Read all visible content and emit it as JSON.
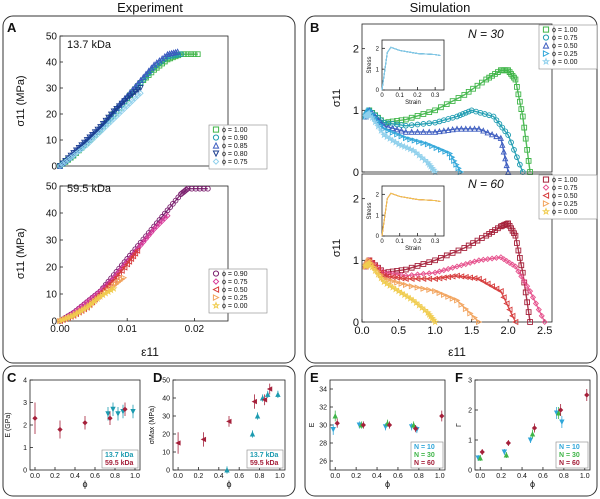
{
  "header": {
    "left": "Experiment",
    "right": "Simulation"
  },
  "panel_letters": {
    "A": "A",
    "B": "B",
    "C": "C",
    "D": "D",
    "E": "E",
    "F": "F"
  },
  "colors": {
    "green": "#3fb548",
    "teal": "#1c9bb0",
    "blue": "#3b5bbf",
    "navy": "#1b3d8f",
    "lightblue": "#8fd0ec",
    "purple": "#7a1f6e",
    "magenta": "#d83a9a",
    "red": "#d63a3a",
    "orange": "#f2a35c",
    "yellow": "#f0cc4f",
    "pink": "#e6508c",
    "cyan": "#2fa6d9",
    "darkred": "#a5203a",
    "frame": "#333333"
  },
  "chart_data": [
    {
      "id": "A_top",
      "type": "line",
      "annotation": "13.7 kDa",
      "ylabel": "σ11 (MPa)",
      "xlim": [
        0,
        0.025
      ],
      "ylim": [
        0,
        50
      ],
      "xticks": [],
      "yticks": [
        0,
        10,
        20,
        30,
        40,
        50
      ],
      "legend_position": "bottom-right",
      "series": [
        {
          "name": "ϕ = 1.00",
          "marker": "square",
          "color": "#3fb548",
          "x": [
            0,
            0.002,
            0.004,
            0.006,
            0.008,
            0.01,
            0.012,
            0.014,
            0.016,
            0.018,
            0.0205
          ],
          "y": [
            0,
            4,
            9,
            14,
            20,
            26,
            32,
            37,
            41,
            43,
            43
          ]
        },
        {
          "name": "ϕ = 0.90",
          "marker": "circle",
          "color": "#1c9bb0",
          "x": [
            0,
            0.002,
            0.004,
            0.006,
            0.008,
            0.01,
            0.012,
            0.014,
            0.016,
            0.018
          ],
          "y": [
            0,
            4,
            9,
            14,
            20,
            26,
            32,
            38,
            42,
            43
          ]
        },
        {
          "name": "ϕ = 0.85",
          "marker": "triangle-up",
          "color": "#3b5bbf",
          "x": [
            0,
            0.002,
            0.004,
            0.006,
            0.008,
            0.01,
            0.012,
            0.014,
            0.016,
            0.0175
          ],
          "y": [
            0,
            5,
            10,
            15,
            21,
            27,
            33,
            39,
            43,
            44
          ]
        },
        {
          "name": "ϕ = 0.80",
          "marker": "triangle-down",
          "color": "#1b3d8f",
          "x": [
            0,
            0.002,
            0.004,
            0.006,
            0.008,
            0.01,
            0.012
          ],
          "y": [
            0,
            5,
            10,
            15,
            21,
            26,
            30
          ]
        },
        {
          "name": "ϕ = 0.75",
          "marker": "diamond",
          "color": "#8fd0ec",
          "x": [
            0,
            0.002,
            0.004,
            0.006,
            0.008,
            0.01,
            0.012
          ],
          "y": [
            0,
            4,
            8,
            13,
            18,
            23,
            28
          ]
        }
      ]
    },
    {
      "id": "A_bottom",
      "type": "line",
      "annotation": "59.5 kDa",
      "xlabel": "ε11",
      "ylabel": "σ11 (MPa)",
      "xlim": [
        0,
        0.025
      ],
      "ylim": [
        0,
        50
      ],
      "xticks": [
        0.0,
        0.01,
        0.02
      ],
      "yticks": [
        0,
        10,
        20,
        30,
        40,
        50
      ],
      "legend_position": "bottom-right",
      "series": [
        {
          "name": "ϕ = 0.90",
          "marker": "circle",
          "color": "#7a1f6e",
          "x": [
            0,
            0.002,
            0.004,
            0.006,
            0.008,
            0.01,
            0.012,
            0.014,
            0.016,
            0.018,
            0.019,
            0.022
          ],
          "y": [
            0,
            3,
            7,
            11,
            17,
            23,
            29,
            35,
            41,
            47,
            49,
            49
          ]
        },
        {
          "name": "ϕ = 0.75",
          "marker": "diamond",
          "color": "#d83a9a",
          "x": [
            0,
            0.002,
            0.004,
            0.006,
            0.008,
            0.01,
            0.012,
            0.014,
            0.016
          ],
          "y": [
            0,
            3,
            7,
            11,
            16,
            22,
            28,
            34,
            39
          ]
        },
        {
          "name": "ϕ = 0.50",
          "marker": "triangle-left",
          "color": "#d63a3a",
          "x": [
            0,
            0.002,
            0.004,
            0.006,
            0.008,
            0.01,
            0.0115
          ],
          "y": [
            0,
            2,
            5,
            10,
            15,
            21,
            26
          ]
        },
        {
          "name": "ϕ = 0.25",
          "marker": "triangle-right",
          "color": "#f2a35c",
          "x": [
            0,
            0.002,
            0.004,
            0.006,
            0.008,
            0.0095
          ],
          "y": [
            0,
            2,
            5,
            9,
            13,
            16
          ]
        },
        {
          "name": "ϕ = 0.00",
          "marker": "star",
          "color": "#f0cc4f",
          "x": [
            0,
            0.002,
            0.004,
            0.006,
            0.008
          ],
          "y": [
            0,
            2,
            5,
            9,
            12
          ]
        }
      ]
    },
    {
      "id": "B_top",
      "type": "line",
      "annotation": "N = 30",
      "ylabel": "σ11",
      "xlim": [
        0,
        2.6
      ],
      "ylim": [
        0,
        2.4
      ],
      "yticks": [
        0,
        1,
        2
      ],
      "xticks": [],
      "legend_position": "top-right",
      "series": [
        {
          "name": "ϕ = 1.00",
          "marker": "square",
          "color": "#3fb548",
          "x": [
            0.05,
            0.1,
            0.3,
            0.6,
            1.0,
            1.4,
            1.7,
            1.9,
            2.0,
            2.1,
            2.2,
            2.3
          ],
          "y": [
            0.9,
            1.0,
            0.8,
            0.85,
            1.0,
            1.25,
            1.5,
            1.65,
            1.65,
            1.5,
            0.9,
            0.0
          ]
        },
        {
          "name": "ϕ = 0.75",
          "marker": "circle",
          "color": "#1c9bb0",
          "x": [
            0.05,
            0.1,
            0.3,
            0.6,
            1.0,
            1.3,
            1.5,
            1.8,
            2.0,
            2.2
          ],
          "y": [
            0.9,
            1.0,
            0.8,
            0.75,
            0.8,
            0.9,
            1.0,
            0.9,
            0.6,
            0.0
          ]
        },
        {
          "name": "ϕ = 0.50",
          "marker": "triangle-up",
          "color": "#3b5bbf",
          "x": [
            0.05,
            0.1,
            0.3,
            0.6,
            1.0,
            1.3,
            1.6,
            1.9,
            2.0
          ],
          "y": [
            0.9,
            1.0,
            0.75,
            0.65,
            0.65,
            0.7,
            0.7,
            0.55,
            0.0
          ]
        },
        {
          "name": "ϕ = 0.25",
          "marker": "triangle-right",
          "color": "#2fa6d9",
          "x": [
            0.05,
            0.1,
            0.3,
            0.6,
            0.9,
            1.2,
            1.35
          ],
          "y": [
            0.9,
            1.0,
            0.7,
            0.55,
            0.45,
            0.3,
            0.0
          ]
        },
        {
          "name": "ϕ = 0.00",
          "marker": "star",
          "color": "#8fd0ec",
          "x": [
            0.05,
            0.1,
            0.3,
            0.5,
            0.7,
            0.9,
            1.0
          ],
          "y": [
            0.9,
            0.95,
            0.6,
            0.45,
            0.35,
            0.15,
            0.0
          ]
        }
      ],
      "inset": {
        "xlabel": "Strain",
        "ylabel": "Stress",
        "xlim": [
          0,
          0.35
        ],
        "ylim": [
          0,
          2.4
        ],
        "xticks": [
          0,
          0.1,
          0.2,
          0.3
        ],
        "yticks": [
          0,
          1,
          2
        ]
      }
    },
    {
      "id": "B_bottom",
      "type": "line",
      "annotation": "N = 60",
      "xlabel": "ε11",
      "ylabel": "σ11",
      "xlim": [
        0,
        2.6
      ],
      "ylim": [
        0,
        2.4
      ],
      "xticks": [
        0.0,
        0.5,
        1.0,
        1.5,
        2.0,
        2.5
      ],
      "yticks": [
        0,
        1,
        2
      ],
      "legend_position": "top-right",
      "series": [
        {
          "name": "ϕ = 1.00",
          "marker": "square",
          "color": "#a5203a",
          "x": [
            0.05,
            0.1,
            0.3,
            0.6,
            1.0,
            1.4,
            1.7,
            1.9,
            2.0,
            2.1,
            2.2,
            2.3
          ],
          "y": [
            0.9,
            1.0,
            0.8,
            0.85,
            1.0,
            1.2,
            1.4,
            1.55,
            1.6,
            1.4,
            0.8,
            0.0
          ]
        },
        {
          "name": "ϕ = 0.75",
          "marker": "diamond",
          "color": "#e6508c",
          "x": [
            0.05,
            0.1,
            0.3,
            0.6,
            1.0,
            1.3,
            1.6,
            1.9,
            2.1,
            2.3,
            2.5
          ],
          "y": [
            0.9,
            1.0,
            0.8,
            0.75,
            0.8,
            0.9,
            1.0,
            1.05,
            0.9,
            0.5,
            0.0
          ]
        },
        {
          "name": "ϕ = 0.50",
          "marker": "triangle-left",
          "color": "#d63a3a",
          "x": [
            0.05,
            0.1,
            0.3,
            0.6,
            1.0,
            1.3,
            1.6,
            1.9,
            2.1
          ],
          "y": [
            0.9,
            1.0,
            0.75,
            0.7,
            0.7,
            0.75,
            0.7,
            0.5,
            0.0
          ]
        },
        {
          "name": "ϕ = 0.25",
          "marker": "triangle-right",
          "color": "#f2a35c",
          "x": [
            0.05,
            0.1,
            0.3,
            0.6,
            1.0,
            1.3,
            1.6
          ],
          "y": [
            0.9,
            1.0,
            0.7,
            0.6,
            0.5,
            0.35,
            0.0
          ]
        },
        {
          "name": "ϕ = 0.00",
          "marker": "star",
          "color": "#f0cc4f",
          "x": [
            0.05,
            0.1,
            0.3,
            0.5,
            0.7,
            0.9,
            1.0
          ],
          "y": [
            0.9,
            0.95,
            0.65,
            0.5,
            0.35,
            0.15,
            0.0
          ]
        }
      ],
      "inset": {
        "xlabel": "Strain",
        "ylabel": "Stress",
        "xlim": [
          0,
          0.35
        ],
        "ylim": [
          0,
          2.4
        ],
        "xticks": [
          0,
          0.1,
          0.2,
          0.3
        ],
        "yticks": [
          0,
          1,
          2
        ]
      }
    },
    {
      "id": "C",
      "type": "scatter",
      "xlabel": "ϕ",
      "ylabel": "E (GPa)",
      "xlim": [
        -0.05,
        1.05
      ],
      "ylim": [
        0,
        4
      ],
      "xticks": [
        0.0,
        0.2,
        0.4,
        0.6,
        0.8,
        1.0
      ],
      "yticks": [
        0,
        1,
        2,
        3,
        4
      ],
      "legend_position": "bottom-right",
      "series": [
        {
          "name": "13.7 kDa",
          "color": "#1c9bb0",
          "x": [
            0.75,
            0.8,
            0.85,
            0.9,
            1.0
          ],
          "y": [
            2.5,
            2.7,
            2.5,
            2.6,
            2.6
          ],
          "err": [
            0.3,
            0.3,
            0.3,
            0.3,
            0.3
          ]
        },
        {
          "name": "59.5 kDa",
          "color": "#a5203a",
          "x": [
            0.0,
            0.25,
            0.5,
            0.75,
            0.9
          ],
          "y": [
            2.3,
            1.8,
            2.1,
            2.3,
            2.7
          ],
          "err": [
            0.7,
            0.4,
            0.3,
            0.3,
            0.3
          ]
        }
      ]
    },
    {
      "id": "D",
      "type": "scatter",
      "xlabel": "ϕ",
      "ylabel": "σMax (MPa)",
      "xlim": [
        -0.05,
        1.05
      ],
      "ylim": [
        0,
        50
      ],
      "xticks": [
        0.0,
        0.2,
        0.4,
        0.6,
        0.8,
        1.0
      ],
      "yticks": [
        0,
        10,
        20,
        30,
        40,
        50
      ],
      "legend_position": "bottom-right",
      "series": [
        {
          "name": "13.7 kDa",
          "color": "#1c9bb0",
          "x": [
            0.5,
            0.75,
            0.8,
            0.85,
            0.9,
            1.0
          ],
          "y": [
            0,
            20,
            30,
            40,
            42,
            42
          ],
          "err": [
            2,
            2,
            2,
            2,
            2,
            2
          ]
        },
        {
          "name": "59.5 kDa",
          "color": "#a5203a",
          "x": [
            0.0,
            0.25,
            0.5,
            0.75,
            0.85,
            0.9
          ],
          "y": [
            15,
            17,
            27,
            38,
            39,
            45
          ],
          "err": [
            6,
            4,
            3,
            4,
            3,
            3
          ]
        }
      ]
    },
    {
      "id": "E",
      "type": "scatter",
      "xlabel": "ϕ",
      "ylabel": "E",
      "xlim": [
        -0.05,
        1.05
      ],
      "ylim": [
        25,
        35
      ],
      "xticks": [
        0.0,
        0.2,
        0.4,
        0.6,
        0.8,
        1.0
      ],
      "yticks": [
        26,
        28,
        30,
        32,
        34
      ],
      "legend_position": "bottom-right",
      "series": [
        {
          "name": "N = 10",
          "color": "#2fa6d9",
          "x": [
            0.0,
            0.25,
            0.5,
            0.75,
            0.8
          ],
          "y": [
            29.5,
            30.0,
            29.8,
            29.8,
            29.5
          ],
          "err": [
            0.6,
            0.4,
            0.4,
            0.4,
            0.4
          ]
        },
        {
          "name": "N = 30",
          "color": "#3fb548",
          "x": [
            0.0,
            0.25,
            0.5,
            0.75
          ],
          "y": [
            31.0,
            30.0,
            30.2,
            30.0
          ],
          "err": [
            0.6,
            0.4,
            0.4,
            0.4
          ]
        },
        {
          "name": "N = 60",
          "color": "#a5203a",
          "x": [
            0.0,
            0.25,
            0.5,
            0.75,
            1.0
          ],
          "y": [
            30.2,
            30.0,
            30.0,
            29.6,
            31.0
          ],
          "err": [
            0.5,
            0.4,
            0.4,
            0.4,
            0.6
          ]
        }
      ]
    },
    {
      "id": "F",
      "type": "scatter",
      "xlabel": "ϕ",
      "ylabel": "Γ",
      "xlim": [
        -0.05,
        1.05
      ],
      "ylim": [
        0,
        3
      ],
      "xticks": [
        0.0,
        0.2,
        0.4,
        0.6,
        0.8,
        1.0
      ],
      "yticks": [
        0,
        1,
        2,
        3
      ],
      "legend_position": "bottom-right",
      "series": [
        {
          "name": "N = 10",
          "color": "#2fa6d9",
          "x": [
            0.0,
            0.25,
            0.5,
            0.75,
            0.8
          ],
          "y": [
            0.4,
            0.6,
            1.0,
            1.9,
            1.6
          ],
          "err": [
            0.1,
            0.1,
            0.1,
            0.2,
            0.2
          ]
        },
        {
          "name": "N = 30",
          "color": "#3fb548",
          "x": [
            0.0,
            0.25,
            0.5,
            0.75
          ],
          "y": [
            0.4,
            0.5,
            1.2,
            1.9
          ],
          "err": [
            0.1,
            0.1,
            0.15,
            0.2
          ]
        },
        {
          "name": "N = 60",
          "color": "#a5203a",
          "x": [
            0.0,
            0.25,
            0.5,
            0.75,
            1.0
          ],
          "y": [
            0.6,
            0.9,
            1.4,
            2.0,
            2.5
          ],
          "err": [
            0.1,
            0.1,
            0.15,
            0.2,
            0.2
          ]
        }
      ]
    }
  ]
}
